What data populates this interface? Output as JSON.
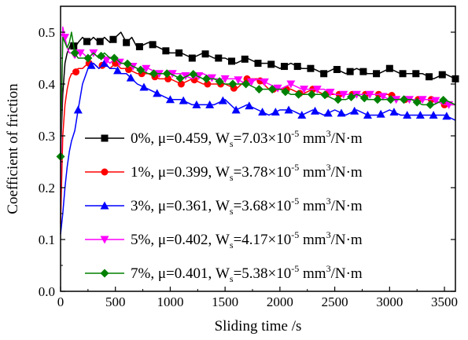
{
  "chart_data": {
    "type": "line",
    "title": "",
    "xlabel": "Sliding time /s",
    "ylabel": "Coefficient of friction",
    "xlim": [
      0,
      3600
    ],
    "ylim": [
      0.0,
      0.55
    ],
    "x_ticks": [
      0,
      500,
      1000,
      1500,
      2000,
      2500,
      3000,
      3500
    ],
    "x_tick_labels": [
      "0",
      "500",
      "1000",
      "1500",
      "2000",
      "2500",
      "3000",
      "3500"
    ],
    "y_ticks": [
      0.0,
      0.1,
      0.2,
      0.3,
      0.4,
      0.5
    ],
    "y_tick_labels": [
      "0.0",
      "0.1",
      "0.2",
      "0.3",
      "0.4",
      "0.5"
    ],
    "grid": false,
    "legend_position": "bottom-right",
    "series": [
      {
        "name": "0%",
        "legend": {
          "label": "0%, μ=0.459, W",
          "sub": "s",
          "value": "=7.03×10",
          "exp": "-5",
          "unit": " mm",
          "unit_sup": "3",
          "unit_end": "/N·m"
        },
        "color": "#000000",
        "marker": "square",
        "x": [
          0,
          20,
          40,
          60,
          80,
          100,
          130,
          160,
          200,
          250,
          300,
          350,
          400,
          450,
          500,
          550,
          600,
          650,
          700,
          800,
          900,
          1000,
          1100,
          1200,
          1300,
          1400,
          1500,
          1600,
          1700,
          1800,
          1900,
          2000,
          2100,
          2200,
          2300,
          2400,
          2500,
          2600,
          2700,
          2800,
          2900,
          3000,
          3100,
          3200,
          3300,
          3400,
          3500,
          3600
        ],
        "y": [
          0.26,
          0.38,
          0.44,
          0.46,
          0.47,
          0.48,
          0.47,
          0.48,
          0.49,
          0.48,
          0.49,
          0.48,
          0.49,
          0.48,
          0.49,
          0.5,
          0.48,
          0.49,
          0.47,
          0.48,
          0.47,
          0.46,
          0.46,
          0.45,
          0.46,
          0.45,
          0.45,
          0.44,
          0.45,
          0.44,
          0.44,
          0.43,
          0.44,
          0.43,
          0.43,
          0.42,
          0.43,
          0.42,
          0.43,
          0.42,
          0.42,
          0.43,
          0.42,
          0.42,
          0.42,
          0.41,
          0.42,
          0.41
        ],
        "markers_x": [
          120,
          240,
          360,
          480,
          600,
          720,
          840,
          960,
          1080,
          1200,
          1320,
          1440,
          1560,
          1680,
          1800,
          1920,
          2040,
          2160,
          2280,
          2400,
          2520,
          2640,
          2760,
          2880,
          3000,
          3120,
          3240,
          3360,
          3480,
          3600
        ]
      },
      {
        "name": "1%",
        "legend": {
          "label": "1%, μ=0.399, W",
          "sub": "s",
          "value": "=3.78×10",
          "exp": "-5",
          "unit": " mm",
          "unit_sup": "3",
          "unit_end": "/N·m"
        },
        "color": "#ff0000",
        "marker": "circle",
        "x": [
          0,
          20,
          40,
          60,
          80,
          100,
          130,
          160,
          200,
          250,
          300,
          350,
          400,
          450,
          500,
          550,
          600,
          700,
          800,
          900,
          1000,
          1100,
          1200,
          1300,
          1400,
          1500,
          1600,
          1700,
          1800,
          1900,
          2000,
          2100,
          2200,
          2300,
          2400,
          2500,
          2600,
          2700,
          2800,
          2900,
          3000,
          3100,
          3200,
          3300,
          3400,
          3500,
          3600
        ],
        "y": [
          0.13,
          0.3,
          0.36,
          0.39,
          0.41,
          0.42,
          0.42,
          0.43,
          0.43,
          0.44,
          0.44,
          0.43,
          0.44,
          0.43,
          0.44,
          0.43,
          0.43,
          0.42,
          0.42,
          0.41,
          0.41,
          0.4,
          0.41,
          0.4,
          0.4,
          0.4,
          0.39,
          0.41,
          0.41,
          0.39,
          0.39,
          0.39,
          0.38,
          0.39,
          0.38,
          0.38,
          0.38,
          0.38,
          0.38,
          0.38,
          0.38,
          0.37,
          0.37,
          0.37,
          0.37,
          0.36,
          0.36
        ],
        "markers_x": [
          140,
          260,
          380,
          500,
          620,
          740,
          860,
          980,
          1100,
          1220,
          1340,
          1460,
          1580,
          1700,
          1820,
          1940,
          2060,
          2180,
          2300,
          2420,
          2540,
          2660,
          2780,
          2900,
          3020,
          3140,
          3260,
          3380,
          3500
        ]
      },
      {
        "name": "3%",
        "legend": {
          "label": "3%, μ=0.361, W",
          "sub": "s",
          "value": "=3.68×10",
          "exp": "-5",
          "unit": " mm",
          "unit_sup": "3",
          "unit_end": "/N·m"
        },
        "color": "#0000ff",
        "marker": "triangle",
        "x": [
          0,
          20,
          40,
          60,
          80,
          100,
          130,
          160,
          200,
          250,
          300,
          350,
          400,
          450,
          500,
          550,
          600,
          700,
          800,
          900,
          1000,
          1100,
          1200,
          1300,
          1400,
          1500,
          1600,
          1700,
          1800,
          1900,
          2000,
          2100,
          2200,
          2300,
          2400,
          2500,
          2600,
          2700,
          2800,
          2900,
          3000,
          3100,
          3200,
          3300,
          3400,
          3500,
          3600
        ],
        "y": [
          0.11,
          0.15,
          0.2,
          0.24,
          0.27,
          0.29,
          0.31,
          0.35,
          0.4,
          0.43,
          0.44,
          0.43,
          0.44,
          0.43,
          0.43,
          0.42,
          0.42,
          0.4,
          0.39,
          0.38,
          0.37,
          0.37,
          0.36,
          0.36,
          0.36,
          0.37,
          0.35,
          0.36,
          0.35,
          0.34,
          0.35,
          0.35,
          0.34,
          0.35,
          0.34,
          0.35,
          0.34,
          0.35,
          0.34,
          0.34,
          0.35,
          0.34,
          0.34,
          0.34,
          0.34,
          0.34,
          0.33
        ],
        "markers_x": [
          160,
          280,
          400,
          520,
          640,
          760,
          880,
          1000,
          1120,
          1240,
          1360,
          1480,
          1600,
          1720,
          1840,
          1960,
          2080,
          2200,
          2320,
          2440,
          2560,
          2680,
          2800,
          2920,
          3040,
          3160,
          3280,
          3400,
          3520
        ]
      },
      {
        "name": "5%",
        "legend": {
          "label": "5%, μ=0.402, W",
          "sub": "s",
          "value": "=4.17×10",
          "exp": "-5",
          "unit": " mm",
          "unit_sup": "3",
          "unit_end": "/N·m"
        },
        "color": "#ff00ff",
        "marker": "triangle-down",
        "x": [
          0,
          20,
          40,
          60,
          80,
          100,
          130,
          160,
          200,
          250,
          300,
          350,
          400,
          450,
          500,
          550,
          600,
          700,
          800,
          900,
          1000,
          1100,
          1200,
          1300,
          1400,
          1500,
          1600,
          1700,
          1800,
          1900,
          2000,
          2100,
          2200,
          2300,
          2400,
          2500,
          2600,
          2700,
          2800,
          2900,
          3000,
          3100,
          3200,
          3300,
          3400,
          3500,
          3600
        ],
        "y": [
          0.2,
          0.51,
          0.49,
          0.47,
          0.46,
          0.46,
          0.45,
          0.46,
          0.46,
          0.45,
          0.46,
          0.45,
          0.45,
          0.44,
          0.45,
          0.44,
          0.44,
          0.43,
          0.43,
          0.42,
          0.42,
          0.42,
          0.41,
          0.42,
          0.41,
          0.41,
          0.41,
          0.4,
          0.41,
          0.4,
          0.39,
          0.4,
          0.39,
          0.39,
          0.39,
          0.38,
          0.38,
          0.38,
          0.38,
          0.38,
          0.37,
          0.37,
          0.37,
          0.37,
          0.37,
          0.36,
          0.36
        ],
        "markers_x": [
          40,
          180,
          300,
          420,
          540,
          660,
          780,
          900,
          1020,
          1140,
          1260,
          1380,
          1500,
          1620,
          1740,
          1860,
          1980,
          2100,
          2220,
          2340,
          2460,
          2580,
          2700,
          2820,
          2940,
          3060,
          3180,
          3300,
          3420,
          3540
        ]
      },
      {
        "name": "7%",
        "legend": {
          "label": "7%, μ=0.401, W",
          "sub": "s",
          "value": "=5.38×10",
          "exp": "-5",
          "unit": " mm",
          "unit_sup": "3",
          "unit_end": "/N·m"
        },
        "color": "#008000",
        "marker": "diamond",
        "x": [
          0,
          20,
          40,
          60,
          80,
          100,
          130,
          160,
          200,
          250,
          300,
          350,
          400,
          450,
          500,
          550,
          600,
          700,
          800,
          900,
          1000,
          1100,
          1200,
          1300,
          1400,
          1500,
          1600,
          1700,
          1800,
          1900,
          2000,
          2100,
          2200,
          2300,
          2400,
          2500,
          2600,
          2700,
          2800,
          2900,
          3000,
          3100,
          3200,
          3300,
          3400,
          3500,
          3600
        ],
        "y": [
          0.26,
          0.49,
          0.48,
          0.47,
          0.48,
          0.5,
          0.46,
          0.45,
          0.45,
          0.45,
          0.46,
          0.45,
          0.46,
          0.45,
          0.45,
          0.44,
          0.44,
          0.43,
          0.42,
          0.42,
          0.42,
          0.41,
          0.42,
          0.41,
          0.41,
          0.4,
          0.4,
          0.4,
          0.39,
          0.39,
          0.39,
          0.38,
          0.38,
          0.38,
          0.38,
          0.37,
          0.37,
          0.38,
          0.37,
          0.37,
          0.37,
          0.37,
          0.37,
          0.36,
          0.36,
          0.37,
          0.36
        ],
        "markers_x": [
          0,
          130,
          250,
          370,
          490,
          610,
          730,
          850,
          970,
          1090,
          1210,
          1330,
          1450,
          1570,
          1690,
          1810,
          1930,
          2050,
          2170,
          2290,
          2410,
          2530,
          2650,
          2770,
          2890,
          3010,
          3130,
          3250,
          3370,
          3490
        ]
      }
    ]
  }
}
